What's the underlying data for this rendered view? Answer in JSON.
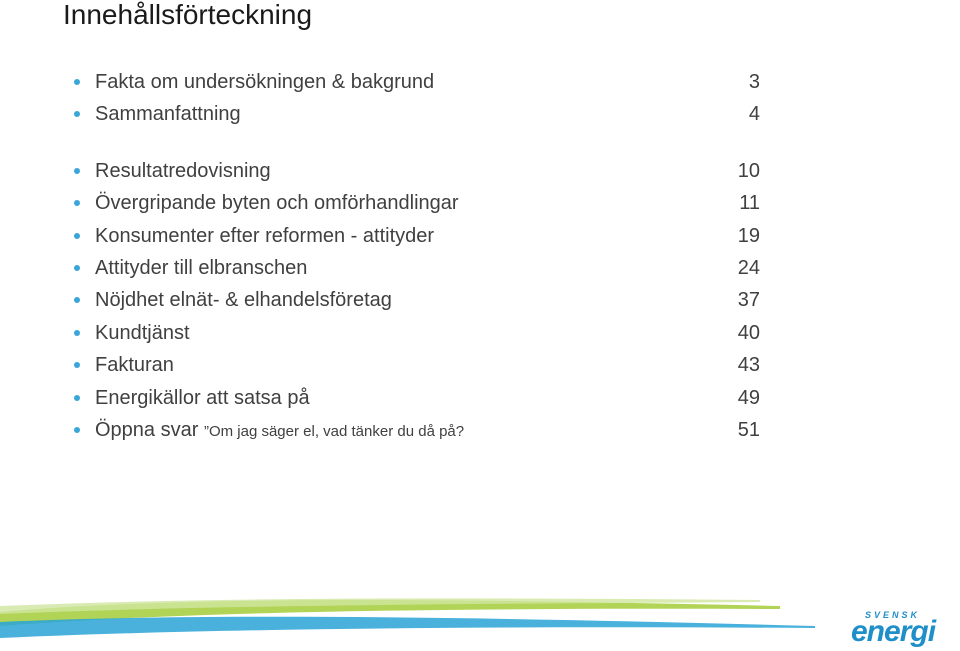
{
  "title": "Innehållsförteckning",
  "groups": [
    {
      "items": [
        {
          "label": "Fakta om undersökningen & bakgrund",
          "page": "3"
        },
        {
          "label": "Sammanfattning",
          "page": "4"
        }
      ]
    },
    {
      "items": [
        {
          "label": "Resultatredovisning",
          "page": "10"
        },
        {
          "label": "Övergripande byten och omförhandlingar",
          "page": "11"
        },
        {
          "label": "Konsumenter efter reformen - attityder",
          "page": "19"
        },
        {
          "label": "Attityder till elbranschen",
          "page": "24"
        },
        {
          "label": "Nöjdhet elnät- & elhandelsföretag",
          "page": "37"
        },
        {
          "label": "Kundtjänst",
          "page": "40"
        },
        {
          "label": "Fakturan",
          "page": "43"
        },
        {
          "label": "Energikällor att satsa på",
          "page": "49"
        },
        {
          "label": "Öppna svar",
          "sublabel": "”Om jag säger el, vad tänker du då på?",
          "page": "51"
        }
      ]
    }
  ],
  "logo": {
    "top": "SVENSK",
    "main": "energi"
  },
  "colors": {
    "bullet": "#3aa6d8",
    "brand": "#1e8fc8",
    "swoosh_green": "#a8cf45",
    "swoosh_blue": "#29a3d6"
  }
}
